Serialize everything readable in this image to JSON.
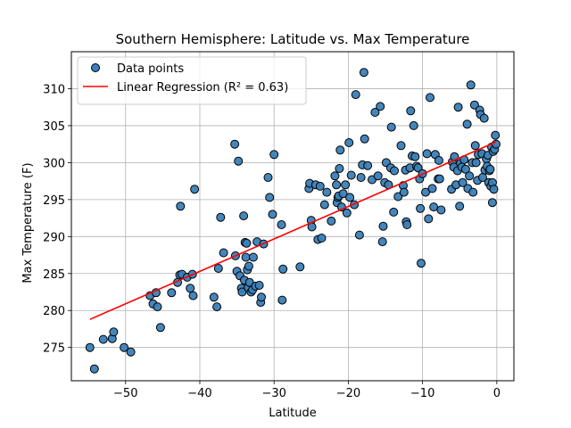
{
  "chart_data": {
    "type": "scatter",
    "title": "Southern Hemisphere: Latitude vs. Max Temperature",
    "xlabel": "Latitude",
    "ylabel": "Max Temperature (F)",
    "xlim": [
      -57.3,
      2.3
    ],
    "ylim": [
      270.5,
      315.0
    ],
    "xticks": [
      -50,
      -40,
      -30,
      -20,
      -10,
      0
    ],
    "yticks": [
      275,
      280,
      285,
      290,
      295,
      300,
      305,
      310
    ],
    "grid": true,
    "legend_placement": "top-left",
    "series": [
      {
        "name": "Data points",
        "kind": "scatter",
        "color": "#3a7fb8",
        "edge_color": "#000000",
        "points": [
          [
            -54.8,
            275.0
          ],
          [
            -54.2,
            272.1
          ],
          [
            -53.0,
            276.1
          ],
          [
            -51.8,
            276.2
          ],
          [
            -51.6,
            277.1
          ],
          [
            -50.2,
            275.0
          ],
          [
            -49.3,
            274.4
          ],
          [
            -46.7,
            282.0
          ],
          [
            -46.3,
            280.9
          ],
          [
            -45.9,
            282.4
          ],
          [
            -45.7,
            280.5
          ],
          [
            -45.3,
            277.7
          ],
          [
            -43.8,
            282.4
          ],
          [
            -43.0,
            283.8
          ],
          [
            -42.7,
            284.8
          ],
          [
            -42.6,
            294.1
          ],
          [
            -42.4,
            284.9
          ],
          [
            -41.7,
            284.5
          ],
          [
            -41.3,
            283.0
          ],
          [
            -41.0,
            284.9
          ],
          [
            -40.9,
            282.0
          ],
          [
            -40.7,
            296.4
          ],
          [
            -38.1,
            281.8
          ],
          [
            -37.7,
            280.5
          ],
          [
            -37.5,
            285.7
          ],
          [
            -37.2,
            292.6
          ],
          [
            -36.8,
            287.8
          ],
          [
            -35.3,
            302.5
          ],
          [
            -35.2,
            287.4
          ],
          [
            -35.0,
            285.3
          ],
          [
            -34.8,
            300.2
          ],
          [
            -34.6,
            284.7
          ],
          [
            -34.4,
            283.0
          ],
          [
            -34.3,
            282.5
          ],
          [
            -34.1,
            292.8
          ],
          [
            -34.0,
            284.1
          ],
          [
            -33.9,
            289.2
          ],
          [
            -33.8,
            287.2
          ],
          [
            -33.7,
            289.1
          ],
          [
            -33.6,
            285.5
          ],
          [
            -33.5,
            283.1
          ],
          [
            -33.4,
            286.0
          ],
          [
            -33.3,
            283.8
          ],
          [
            -33.1,
            282.5
          ],
          [
            -32.9,
            282.8
          ],
          [
            -32.8,
            287.2
          ],
          [
            -32.5,
            283.3
          ],
          [
            -32.3,
            289.3
          ],
          [
            -32.0,
            283.4
          ],
          [
            -31.8,
            281.1
          ],
          [
            -31.7,
            281.8
          ],
          [
            -31.4,
            289.0
          ],
          [
            -30.8,
            298.0
          ],
          [
            -30.6,
            295.3
          ],
          [
            -30.2,
            293.0
          ],
          [
            -30.0,
            301.1
          ],
          [
            -29.0,
            291.6
          ],
          [
            -28.8,
            285.6
          ],
          [
            -28.9,
            281.4
          ],
          [
            -26.5,
            285.9
          ],
          [
            -25.3,
            296.5
          ],
          [
            -25.2,
            297.2
          ],
          [
            -25.0,
            292.2
          ],
          [
            -24.9,
            291.3
          ],
          [
            -24.4,
            297.0
          ],
          [
            -24.1,
            289.6
          ],
          [
            -23.8,
            296.8
          ],
          [
            -23.6,
            289.8
          ],
          [
            -23.2,
            294.3
          ],
          [
            -22.9,
            296.0
          ],
          [
            -22.3,
            292.1
          ],
          [
            -21.8,
            298.2
          ],
          [
            -21.6,
            297.0
          ],
          [
            -21.5,
            294.6
          ],
          [
            -21.4,
            295.3
          ],
          [
            -21.3,
            295.5
          ],
          [
            -21.2,
            299.2
          ],
          [
            -21.1,
            301.7
          ],
          [
            -20.9,
            294.0
          ],
          [
            -20.7,
            295.8
          ],
          [
            -20.4,
            297.0
          ],
          [
            -20.2,
            293.2
          ],
          [
            -19.9,
            302.7
          ],
          [
            -19.8,
            295.3
          ],
          [
            -19.6,
            298.3
          ],
          [
            -19.2,
            294.3
          ],
          [
            -19.0,
            309.2
          ],
          [
            -18.5,
            290.2
          ],
          [
            -18.3,
            298.0
          ],
          [
            -18.1,
            299.7
          ],
          [
            -17.9,
            312.2
          ],
          [
            -17.8,
            303.2
          ],
          [
            -17.4,
            299.6
          ],
          [
            -16.8,
            297.7
          ],
          [
            -16.4,
            306.8
          ],
          [
            -16.0,
            298.2
          ],
          [
            -15.7,
            307.6
          ],
          [
            -15.4,
            289.3
          ],
          [
            -15.3,
            291.4
          ],
          [
            -15.1,
            297.3
          ],
          [
            -14.9,
            300.0
          ],
          [
            -14.6,
            297.0
          ],
          [
            -14.3,
            299.3
          ],
          [
            -14.2,
            304.8
          ],
          [
            -13.9,
            293.3
          ],
          [
            -13.8,
            298.9
          ],
          [
            -13.3,
            295.4
          ],
          [
            -12.9,
            302.3
          ],
          [
            -12.6,
            296.9
          ],
          [
            -12.5,
            296.0
          ],
          [
            -12.3,
            299.0
          ],
          [
            -12.2,
            292.0
          ],
          [
            -12.1,
            291.6
          ],
          [
            -11.7,
            299.3
          ],
          [
            -11.6,
            307.0
          ],
          [
            -11.4,
            300.9
          ],
          [
            -11.2,
            305.0
          ],
          [
            -11.0,
            300.8
          ],
          [
            -10.8,
            299.5
          ],
          [
            -10.6,
            299.3
          ],
          [
            -10.4,
            297.8
          ],
          [
            -10.3,
            293.8
          ],
          [
            -10.2,
            286.4
          ],
          [
            -10.0,
            298.5
          ],
          [
            -9.6,
            296.0
          ],
          [
            -9.4,
            301.2
          ],
          [
            -9.2,
            292.4
          ],
          [
            -9.0,
            308.8
          ],
          [
            -8.7,
            296.5
          ],
          [
            -8.5,
            294.0
          ],
          [
            -8.3,
            301.1
          ],
          [
            -7.9,
            297.8
          ],
          [
            -7.8,
            300.3
          ],
          [
            -7.7,
            297.8
          ],
          [
            -7.5,
            293.6
          ],
          [
            -6.1,
            296.4
          ],
          [
            -6.0,
            300.1
          ],
          [
            -5.8,
            299.4
          ],
          [
            -5.7,
            300.8
          ],
          [
            -5.5,
            297.0
          ],
          [
            -5.3,
            298.9
          ],
          [
            -5.2,
            307.5
          ],
          [
            -5.0,
            294.1
          ],
          [
            -4.9,
            299.9
          ],
          [
            -4.7,
            299.4
          ],
          [
            -4.6,
            297.3
          ],
          [
            -4.4,
            300.4
          ],
          [
            -4.2,
            299.1
          ],
          [
            -4.0,
            305.2
          ],
          [
            -3.9,
            296.5
          ],
          [
            -3.7,
            298.2
          ],
          [
            -3.5,
            310.5
          ],
          [
            -3.3,
            300.0
          ],
          [
            -3.2,
            296.0
          ],
          [
            -3.0,
            307.8
          ],
          [
            -2.9,
            302.3
          ],
          [
            -2.8,
            300.0
          ],
          [
            -2.6,
            297.6
          ],
          [
            -2.5,
            301.1
          ],
          [
            -2.3,
            307.1
          ],
          [
            -2.2,
            306.5
          ],
          [
            -2.0,
            301.2
          ],
          [
            -1.9,
            298.0
          ],
          [
            -1.7,
            306.0
          ],
          [
            -1.6,
            299.0
          ],
          [
            -1.4,
            300.5
          ],
          [
            -1.3,
            299.5
          ],
          [
            -1.2,
            301.0
          ],
          [
            -1.1,
            297.3
          ],
          [
            -1.0,
            298.9
          ],
          [
            -0.9,
            299.1
          ],
          [
            -0.8,
            296.8
          ],
          [
            -0.7,
            302.1
          ],
          [
            -0.6,
            297.3
          ],
          [
            -0.6,
            294.6
          ],
          [
            -0.5,
            301.5
          ],
          [
            -0.4,
            296.4
          ],
          [
            -0.3,
            301.8
          ],
          [
            -0.2,
            303.7
          ],
          [
            -0.1,
            302.5
          ]
        ]
      },
      {
        "name": "Linear Regression (R² = 0.63)",
        "kind": "line",
        "color": "#ff0000",
        "x": [
          -54.8,
          -0.1
        ],
        "y": [
          278.8,
          302.8
        ]
      }
    ]
  }
}
